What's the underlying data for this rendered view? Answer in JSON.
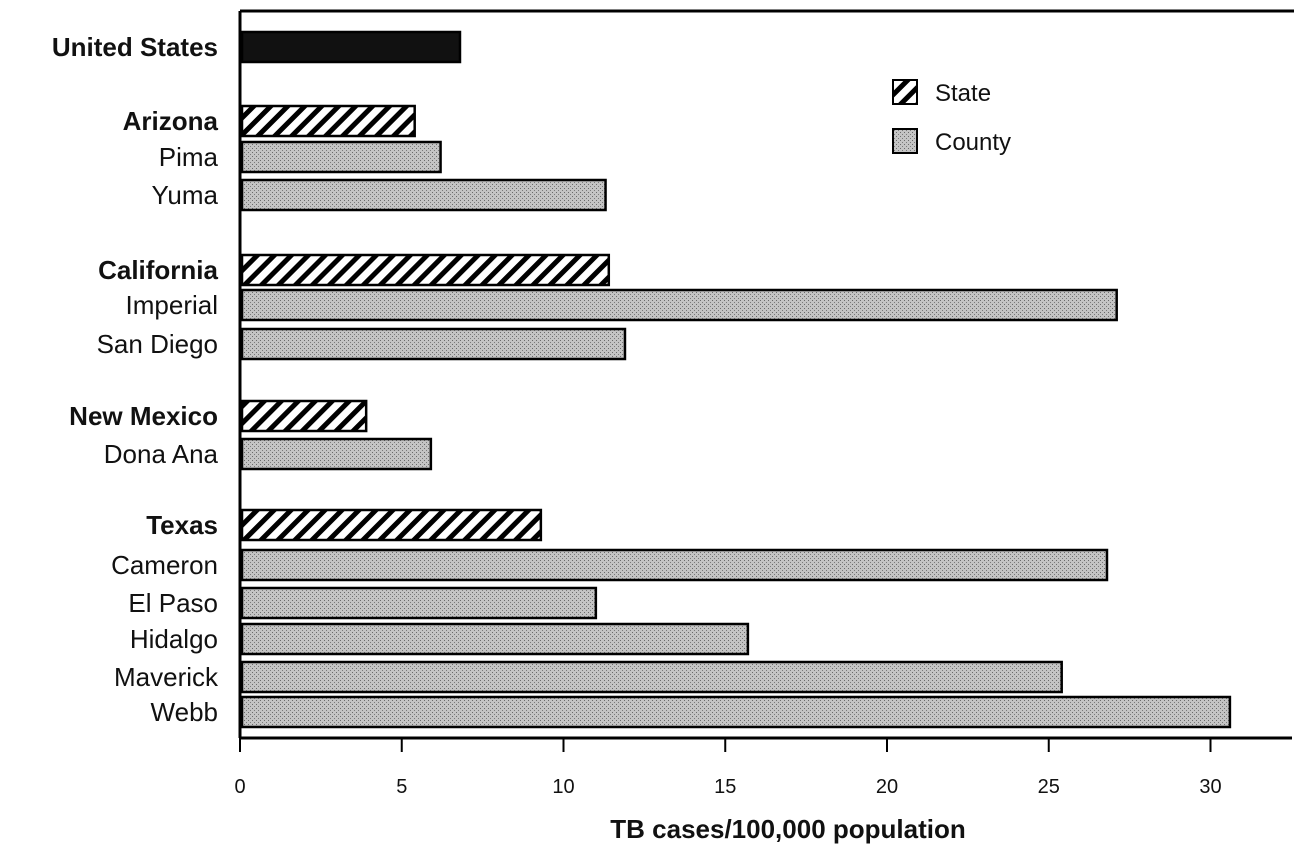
{
  "chart_data": {
    "type": "bar",
    "orientation": "horizontal",
    "title": "",
    "xlabel": "TB cases/100,000 population",
    "ylabel": "",
    "xlim": [
      0,
      32.5
    ],
    "xticks": [
      0,
      5,
      10,
      15,
      20,
      25,
      30
    ],
    "grid": false,
    "legend": {
      "position": "top-right",
      "entries": [
        {
          "name": "State",
          "fill": "hatch"
        },
        {
          "name": "County",
          "fill": "stipple"
        }
      ]
    },
    "colors": {
      "national": "#111111",
      "county": "#b3b3b3",
      "state_hatch": "#000000",
      "outline": "#000000"
    },
    "categories": [
      {
        "label": "United States",
        "value": 6.8,
        "kind": "national",
        "bold": true
      },
      {
        "label": "Arizona",
        "value": 5.4,
        "kind": "state",
        "bold": true
      },
      {
        "label": "Pima",
        "value": 6.2,
        "kind": "county",
        "bold": false
      },
      {
        "label": "Yuma",
        "value": 11.3,
        "kind": "county",
        "bold": false
      },
      {
        "label": "California",
        "value": 11.4,
        "kind": "state",
        "bold": true
      },
      {
        "label": "Imperial",
        "value": 27.1,
        "kind": "county",
        "bold": false
      },
      {
        "label": "San Diego",
        "value": 11.9,
        "kind": "county",
        "bold": false
      },
      {
        "label": "New Mexico",
        "value": 3.9,
        "kind": "state",
        "bold": true
      },
      {
        "label": "Dona Ana",
        "value": 5.9,
        "kind": "county",
        "bold": false
      },
      {
        "label": "Texas",
        "value": 9.3,
        "kind": "state",
        "bold": true
      },
      {
        "label": "Cameron",
        "value": 26.8,
        "kind": "county",
        "bold": false
      },
      {
        "label": "El Paso",
        "value": 11.0,
        "kind": "county",
        "bold": false
      },
      {
        "label": "Hidalgo",
        "value": 15.7,
        "kind": "county",
        "bold": false
      },
      {
        "label": "Maverick",
        "value": 25.4,
        "kind": "county",
        "bold": false
      },
      {
        "label": "Webb",
        "value": 30.6,
        "kind": "county",
        "bold": false
      }
    ]
  }
}
